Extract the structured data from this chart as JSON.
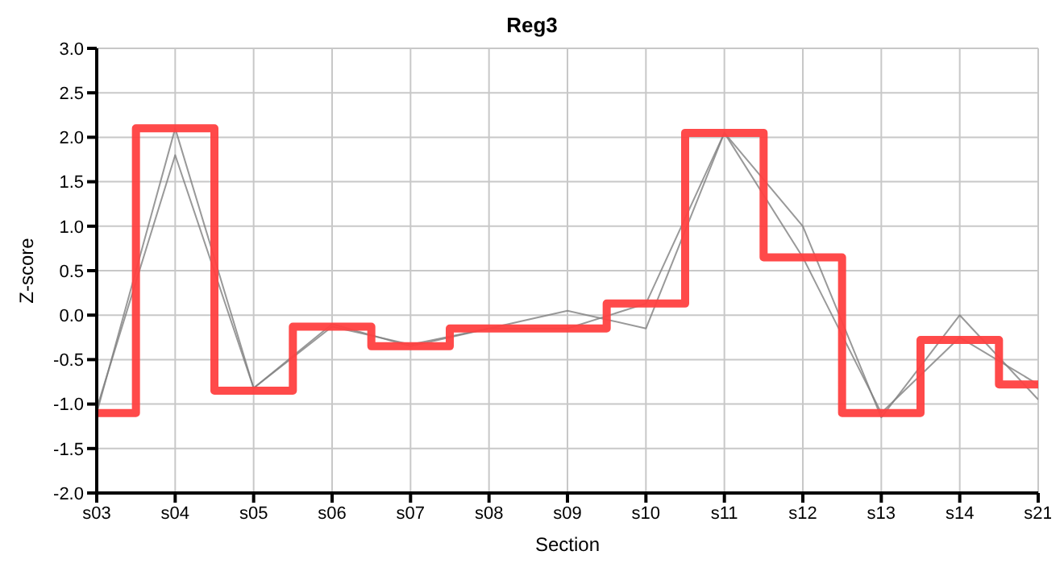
{
  "chart_data": {
    "type": "line",
    "title": "Reg3",
    "xlabel": "Section",
    "ylabel": "Z-score",
    "categories": [
      "s03",
      "s04",
      "s05",
      "s06",
      "s07",
      "s08",
      "s09",
      "s10",
      "s11",
      "s12",
      "s13",
      "s14",
      "s21"
    ],
    "series": [
      {
        "color": "#808080",
        "values": [
          -1.1,
          2.1,
          -0.82,
          -0.1,
          -0.35,
          -0.15,
          0.05,
          -0.15,
          2.05,
          1.0,
          -1.15,
          0.0,
          -0.95
        ]
      },
      {
        "color": "#808080",
        "values": [
          -1.05,
          1.8,
          -0.82,
          -0.13,
          -0.33,
          -0.15,
          -0.15,
          0.13,
          2.05,
          0.65,
          -1.1,
          -0.25,
          -0.78
        ]
      },
      {
        "type": "step",
        "color": "#ff4040",
        "values": [
          -1.1,
          2.1,
          -0.85,
          -0.13,
          -0.35,
          -0.15,
          -0.15,
          0.13,
          2.05,
          0.65,
          -1.1,
          -0.28,
          -0.78
        ]
      }
    ],
    "ylim": [
      -2.0,
      3.0
    ],
    "yticks": [
      {
        "value": -2,
        "label": "-2.0"
      },
      {
        "value": -1.5,
        "label": "-1.5"
      },
      {
        "value": -1,
        "label": "-1.0"
      },
      {
        "value": -0.5,
        "label": "-0.5"
      },
      {
        "value": 0,
        "label": "0.0"
      },
      {
        "value": 0.5,
        "label": "0.5"
      },
      {
        "value": 1,
        "label": "1.0"
      },
      {
        "value": 1.5,
        "label": "1.5"
      },
      {
        "value": 2,
        "label": "2.0"
      },
      {
        "value": 2.5,
        "label": "2.5"
      },
      {
        "value": 3,
        "label": "3.0"
      }
    ],
    "grid": true,
    "marker": "none"
  }
}
